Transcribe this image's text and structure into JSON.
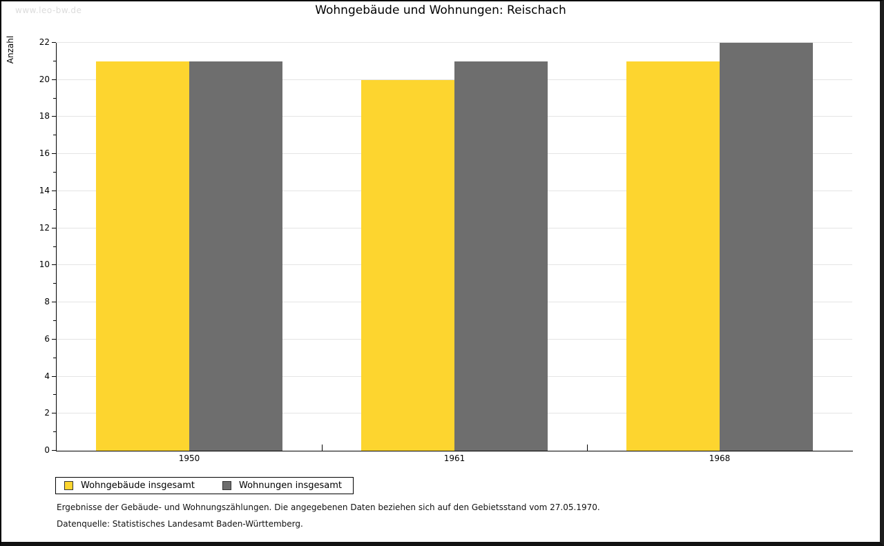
{
  "watermark": "www.leo-bw.de",
  "header": {
    "title": "Wohngebäude und Wohnungen: Reischach"
  },
  "chart_data": {
    "type": "bar",
    "title": "Wohngebäude und Wohnungen: Reischach",
    "categories": [
      "1950",
      "1961",
      "1968"
    ],
    "series": [
      {
        "name": "Wohngebäude insgesamt",
        "color": "#fdd52f",
        "values": [
          21,
          20,
          21
        ]
      },
      {
        "name": "Wohnungen insgesamt",
        "color": "#6e6e6e",
        "values": [
          21,
          21,
          22
        ]
      }
    ],
    "xlabel": "",
    "ylabel": "Anzahl",
    "ylim": [
      0,
      22
    ],
    "yticks": [
      0,
      2,
      4,
      6,
      8,
      10,
      12,
      14,
      16,
      18,
      20,
      22
    ],
    "minor_tick_step": 1,
    "grid": true,
    "gridline_color": "#e4e4e4",
    "legend_position": "bottom-left"
  },
  "footnotes": [
    "Ergebnisse der Gebäude- und Wohnungszählungen. Die angegebenen Daten beziehen sich auf den Gebietsstand vom 27.05.1970.",
    "Datenquelle: Statistisches Landesamt Baden-Württemberg."
  ]
}
